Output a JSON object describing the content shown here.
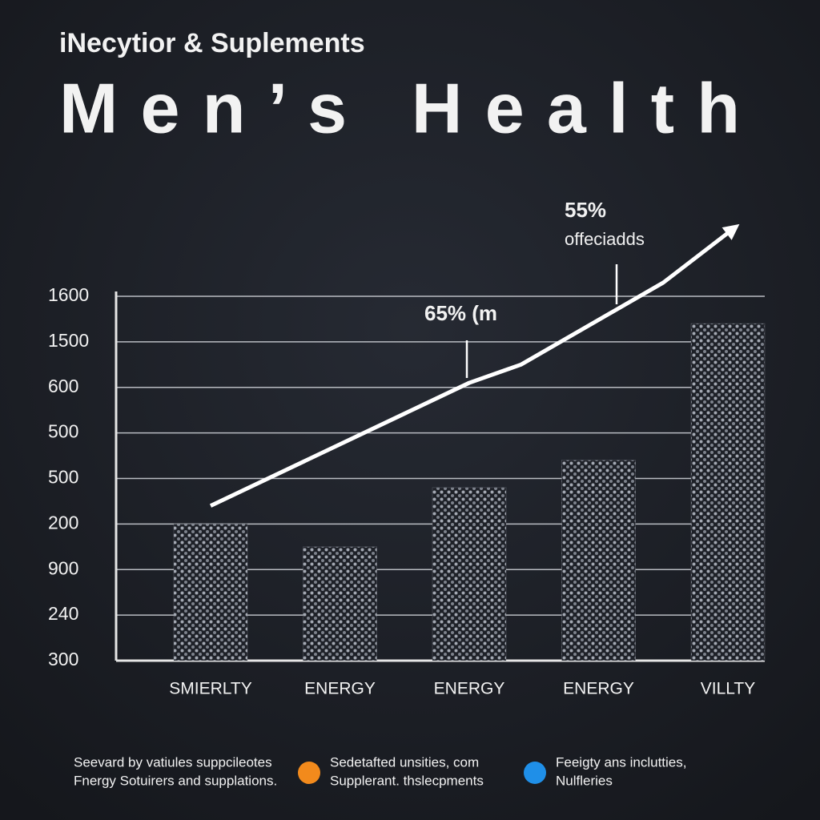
{
  "chart_data": {
    "type": "bar",
    "subtitle": "iNecytior & Suplements",
    "title": "Men’s Health",
    "categories": [
      "SMIERLTY",
      "ENERGY",
      "ENERGY",
      "ENERGY",
      "VILLTY"
    ],
    "values": [
      3.0,
      2.5,
      3.8,
      4.4,
      7.4
    ],
    "color": "#9aa0aa",
    "ylim": [
      0,
      8
    ],
    "yticks": [
      {
        "value": 0,
        "label": "300"
      },
      {
        "value": 1,
        "label": "240"
      },
      {
        "value": 2,
        "label": "900"
      },
      {
        "value": 3,
        "label": "200"
      },
      {
        "value": 4,
        "label": "500"
      },
      {
        "value": 5,
        "label": "500"
      },
      {
        "value": 6,
        "label": "600"
      },
      {
        "value": 7,
        "label": "1500"
      },
      {
        "value": 8,
        "label": "1600"
      }
    ],
    "grid": true,
    "line": {
      "type": "line",
      "color": "#ffffff",
      "x": [
        0,
        2,
        2.4,
        3.5,
        4.05
      ],
      "values": [
        3.4,
        6.1,
        6.5,
        8.3,
        9.5
      ]
    },
    "annotations": [
      [
        "65% (m"
      ],
      [
        "55%",
        "offeciadds"
      ]
    ],
    "legend": [
      {
        "lines": [
          "Seevard by vatiules suppcileotes",
          "Fnergy Sotuirers and supplations."
        ]
      },
      {
        "lines": [
          "Sedetafted unsities, com",
          "Supplerant. thslecpments"
        ],
        "color": "#f28a1c"
      },
      {
        "lines": [
          "Feeigty ans inclutties,",
          "Nulfleries"
        ],
        "color": "#1f8fe8"
      }
    ]
  }
}
